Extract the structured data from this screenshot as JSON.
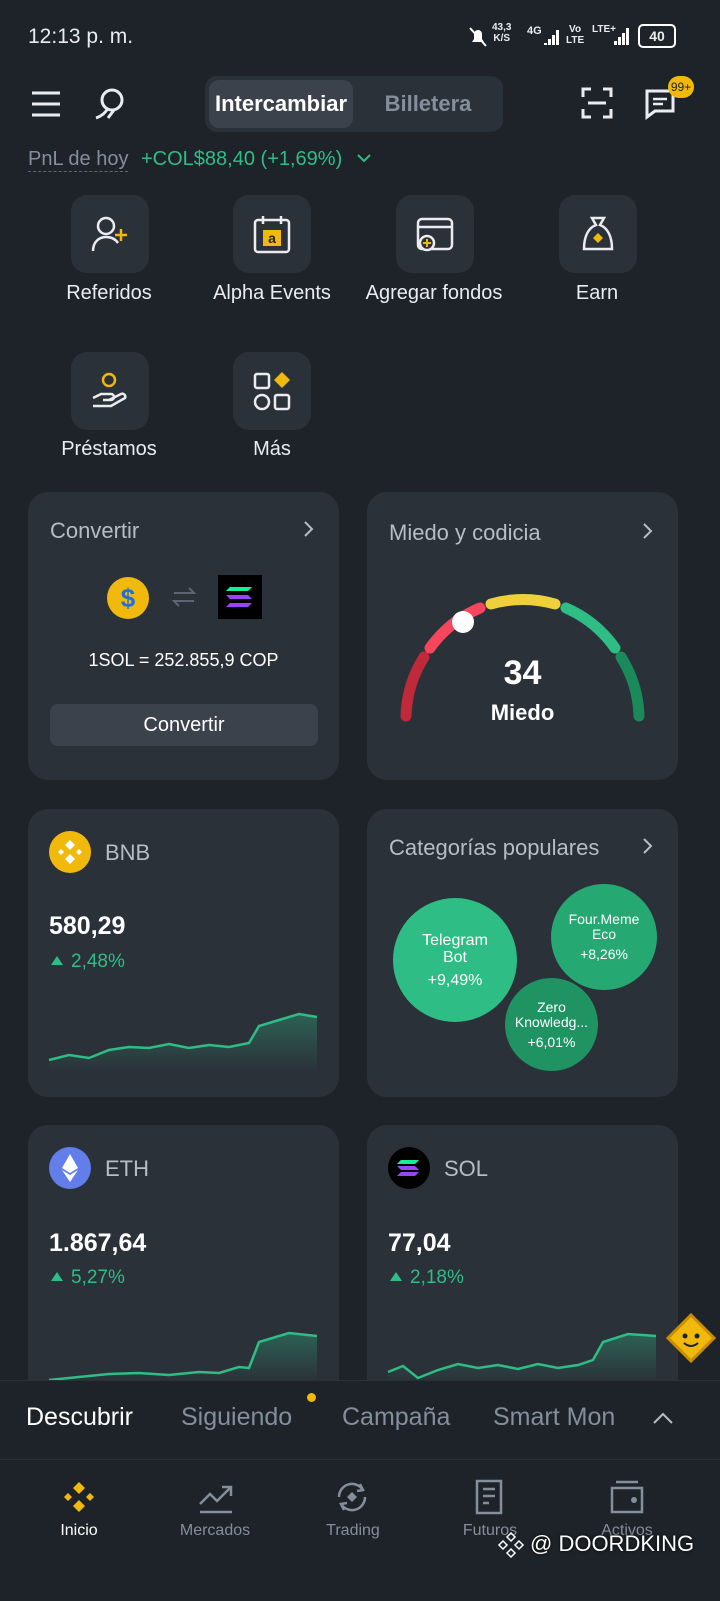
{
  "status_bar": {
    "time": "12:13 p. m.",
    "speed": "43,3",
    "speed_unit": "K/S",
    "network": "4G",
    "volte_top": "Vo",
    "volte_bottom": "LTE",
    "lte": "LTE+",
    "battery": "40"
  },
  "header": {
    "tabs": [
      "Intercambiar",
      "Billetera"
    ],
    "badge": "99+"
  },
  "pnl": {
    "label": "PnL de hoy",
    "value": "+COL$88,40 (+1,69%)"
  },
  "shortcuts": [
    "Referidos",
    "Alpha Events",
    "Agregar fondos",
    "Earn",
    "Préstamos",
    "Más"
  ],
  "convert": {
    "title": "Convertir",
    "rate": "1SOL = 252.855,9 COP",
    "button": "Convertir"
  },
  "fear_greed": {
    "title": "Miedo y codicia",
    "value": "34",
    "label": "Miedo"
  },
  "coins": [
    {
      "name": "BNB",
      "price": "580,29",
      "change": "2,48%"
    },
    {
      "name": "ETH",
      "price": "1.867,64",
      "change": "5,27%"
    },
    {
      "name": "SOL",
      "price": "77,04",
      "change": "2,18%"
    }
  ],
  "categories": {
    "title": "Categorías populares",
    "items": [
      {
        "lines": [
          "Telegram",
          "Bot"
        ],
        "change": "+9,49%"
      },
      {
        "lines": [
          "Four.Meme",
          "Eco"
        ],
        "change": "+8,26%"
      },
      {
        "lines": [
          "Zero",
          "Knowledg..."
        ],
        "change": "+6,01%"
      }
    ]
  },
  "feed_tabs": [
    "Descubrir",
    "Siguiendo",
    "Campaña",
    "Smart Mon"
  ],
  "nav": [
    "Inicio",
    "Mercados",
    "Trading",
    "Futuros",
    "Activos"
  ],
  "watermark": "@ DOORDKING"
}
